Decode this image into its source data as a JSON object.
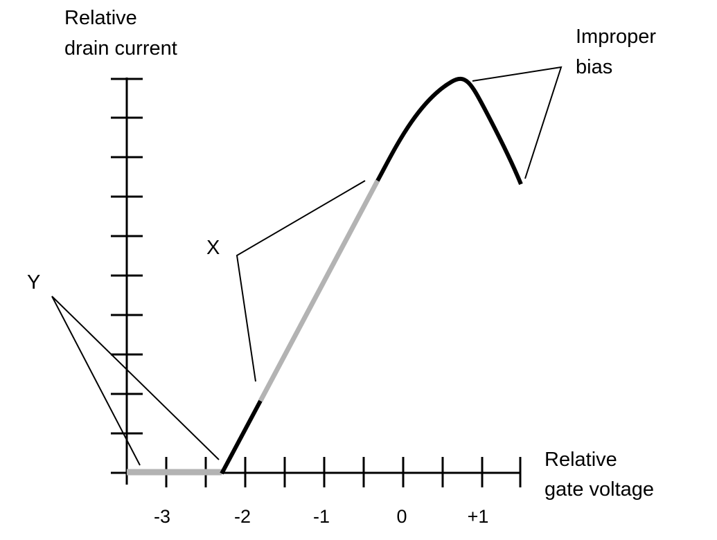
{
  "y_axis": {
    "title_lines": [
      "Relative",
      "drain current"
    ]
  },
  "x_axis": {
    "title_lines": [
      "Relative",
      "gate voltage"
    ],
    "tick_labels": [
      "-3",
      "-2",
      "-1",
      "0",
      "+1"
    ]
  },
  "callouts": {
    "improper_bias": [
      "Improper",
      "bias"
    ],
    "x": "X",
    "y": "Y"
  },
  "colors": {
    "curve": "#000000",
    "highlight": "#b3b3b3",
    "axis": "#000000"
  }
}
